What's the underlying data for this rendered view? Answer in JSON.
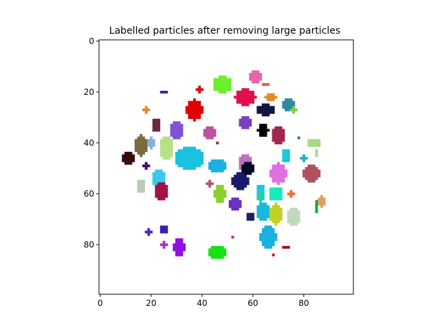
{
  "chart_data": {
    "type": "heatmap",
    "title": "Labelled particles after removing large particles",
    "xlabel": "",
    "ylabel": "",
    "xlim": [
      -0.5,
      99.5
    ],
    "ylim": [
      99.5,
      -0.5
    ],
    "y_inverted": true,
    "grid": false,
    "xticks": [
      0,
      20,
      40,
      60,
      80
    ],
    "yticks": [
      0,
      20,
      40,
      60,
      80
    ],
    "xtick_labels": [
      "0",
      "20",
      "40",
      "60",
      "80"
    ],
    "ytick_labels": [
      "0",
      "20",
      "40",
      "60",
      "80"
    ],
    "background": "#ffffff",
    "particles": [
      {
        "cx": 48,
        "cy": 17,
        "rx": 3.5,
        "ry": 3,
        "color": "#6bef2a"
      },
      {
        "cx": 61,
        "cy": 14,
        "rx": 2.2,
        "ry": 2.5,
        "color": "#e366a8"
      },
      {
        "cx": 65,
        "cy": 17,
        "rx": 1,
        "ry": 0.5,
        "color": "#f25c2b"
      },
      {
        "cx": 57,
        "cy": 22,
        "rx": 3.8,
        "ry": 3,
        "color": "#e0104a"
      },
      {
        "cx": 67,
        "cy": 22,
        "rx": 2,
        "ry": 1.5,
        "color": "#e28a2b"
      },
      {
        "cx": 74,
        "cy": 25,
        "rx": 1.8,
        "ry": 2.5,
        "color": "#2d8a9e"
      },
      {
        "cx": 76,
        "cy": 27,
        "rx": 1,
        "ry": 1,
        "color": "#7bd04a"
      },
      {
        "cx": 65,
        "cy": 27,
        "rx": 3,
        "ry": 2,
        "color": "#121440"
      },
      {
        "cx": 39,
        "cy": 19,
        "rx": 1,
        "ry": 1,
        "color": "#c81414"
      },
      {
        "cx": 25,
        "cy": 20,
        "rx": 1,
        "ry": 0.5,
        "color": "#3a22b0"
      },
      {
        "cx": 18,
        "cy": 27,
        "rx": 0.8,
        "ry": 1.5,
        "color": "#e08a30"
      },
      {
        "cx": 37,
        "cy": 27,
        "rx": 2.8,
        "ry": 3.8,
        "color": "#e00000"
      },
      {
        "cx": 57,
        "cy": 32,
        "rx": 2.2,
        "ry": 2.5,
        "color": "#7a3fc0"
      },
      {
        "cx": 22,
        "cy": 33,
        "rx": 1.4,
        "ry": 2.2,
        "color": "#6a2840"
      },
      {
        "cx": 30,
        "cy": 35,
        "rx": 2.2,
        "ry": 3.5,
        "color": "#8052d8"
      },
      {
        "cx": 43,
        "cy": 36,
        "rx": 2.2,
        "ry": 2.5,
        "color": "#b8549c"
      },
      {
        "cx": 64,
        "cy": 35,
        "rx": 1.8,
        "ry": 2.2,
        "color": "#000000"
      },
      {
        "cx": 70,
        "cy": 37,
        "rx": 2.2,
        "ry": 3.2,
        "color": "#a0284e"
      },
      {
        "cx": 78,
        "cy": 38,
        "rx": 0.5,
        "ry": 0.5,
        "color": "#2a8a2a"
      },
      {
        "cx": 84,
        "cy": 40,
        "rx": 2.2,
        "ry": 1.5,
        "color": "#a8d88a"
      },
      {
        "cx": 16,
        "cy": 41,
        "rx": 2,
        "ry": 4,
        "color": "#7a6a3c"
      },
      {
        "cx": 20,
        "cy": 40,
        "rx": 0.8,
        "ry": 1.8,
        "color": "#8ab0d8"
      },
      {
        "cx": 26,
        "cy": 42,
        "rx": 2.5,
        "ry": 4,
        "color": "#b8e08a"
      },
      {
        "cx": 35,
        "cy": 46,
        "rx": 5.5,
        "ry": 4,
        "color": "#1ac2e0"
      },
      {
        "cx": 46,
        "cy": 49,
        "rx": 3,
        "ry": 2.5,
        "color": "#1ab0e0"
      },
      {
        "cx": 11,
        "cy": 46,
        "rx": 1.8,
        "ry": 2.5,
        "color": "#3a0a0a"
      },
      {
        "cx": 18,
        "cy": 49,
        "rx": 0.8,
        "ry": 1.5,
        "color": "#4a0a6a"
      },
      {
        "cx": 23,
        "cy": 54,
        "rx": 2.2,
        "ry": 3.5,
        "color": "#38c8e8"
      },
      {
        "cx": 16,
        "cy": 57,
        "rx": 1.5,
        "ry": 2.2,
        "color": "#b8ccb8"
      },
      {
        "cx": 24,
        "cy": 59,
        "rx": 2.5,
        "ry": 3,
        "color": "#a01248"
      },
      {
        "cx": 57,
        "cy": 48,
        "rx": 2.2,
        "ry": 3.5,
        "color": "#c070b8"
      },
      {
        "cx": 58,
        "cy": 50,
        "rx": 2.2,
        "ry": 2.2,
        "color": "#000822"
      },
      {
        "cx": 70,
        "cy": 52,
        "rx": 2.8,
        "ry": 3.8,
        "color": "#e070e0"
      },
      {
        "cx": 73,
        "cy": 45,
        "rx": 1.5,
        "ry": 2.2,
        "color": "#1ac8e0"
      },
      {
        "cx": 80,
        "cy": 46,
        "rx": 1,
        "ry": 1,
        "color": "#28b0c0"
      },
      {
        "cx": 83,
        "cy": 52,
        "rx": 3.2,
        "ry": 3.2,
        "color": "#b05060"
      },
      {
        "cx": 55,
        "cy": 55,
        "rx": 2.8,
        "ry": 3.5,
        "color": "#1a1a6a"
      },
      {
        "cx": 43,
        "cy": 56,
        "rx": 0.8,
        "ry": 1,
        "color": "#b05a70"
      },
      {
        "cx": 63,
        "cy": 58,
        "rx": 1.2,
        "ry": 1.2,
        "color": "#1ac8e0"
      },
      {
        "cx": 69,
        "cy": 60,
        "rx": 2.5,
        "ry": 2.5,
        "color": "#18e8c0"
      },
      {
        "cx": 63,
        "cy": 61,
        "rx": 1.2,
        "ry": 2,
        "color": "#20d0b0"
      },
      {
        "cx": 47,
        "cy": 60,
        "rx": 1.8,
        "ry": 3.5,
        "color": "#8ad030"
      },
      {
        "cx": 75,
        "cy": 60,
        "rx": 1,
        "ry": 1,
        "color": "#f07030"
      },
      {
        "cx": 53,
        "cy": 64,
        "rx": 2.2,
        "ry": 2.2,
        "color": "#6a30c0"
      },
      {
        "cx": 87,
        "cy": 63,
        "rx": 1,
        "ry": 2,
        "color": "#e0a060"
      },
      {
        "cx": 85,
        "cy": 65,
        "rx": 0.5,
        "ry": 2,
        "color": "#20a040"
      },
      {
        "cx": 64,
        "cy": 67,
        "rx": 2.2,
        "ry": 3.5,
        "color": "#1ab8e0"
      },
      {
        "cx": 69,
        "cy": 68,
        "rx": 2,
        "ry": 4,
        "color": "#c0d028"
      },
      {
        "cx": 76,
        "cy": 69,
        "rx": 2.5,
        "ry": 3.5,
        "color": "#c0d8c0"
      },
      {
        "cx": 59,
        "cy": 69,
        "rx": 1.5,
        "ry": 1,
        "color": "#202060"
      },
      {
        "cx": 66,
        "cy": 77,
        "rx": 2.8,
        "ry": 4,
        "color": "#1ab0e0"
      },
      {
        "cx": 25,
        "cy": 74,
        "rx": 1.2,
        "ry": 1,
        "color": "#3a20b0"
      },
      {
        "cx": 19,
        "cy": 75,
        "rx": 1,
        "ry": 1,
        "color": "#5028c0"
      },
      {
        "cx": 31,
        "cy": 81,
        "rx": 1.8,
        "ry": 3.2,
        "color": "#9010e0"
      },
      {
        "cx": 25,
        "cy": 80,
        "rx": 0.8,
        "ry": 0.8,
        "color": "#b030d0"
      },
      {
        "cx": 46,
        "cy": 83,
        "rx": 3,
        "ry": 2.5,
        "color": "#18e018"
      },
      {
        "cx": 52,
        "cy": 77,
        "rx": 0.5,
        "ry": 0.5,
        "color": "#d0209c"
      },
      {
        "cx": 73,
        "cy": 81,
        "rx": 1,
        "ry": 0.5,
        "color": "#a01010"
      },
      {
        "cx": 68,
        "cy": 84,
        "rx": 0.5,
        "ry": 0.5,
        "color": "#d01010"
      },
      {
        "cx": 46,
        "cy": 40,
        "rx": 0.5,
        "ry": 0.5,
        "color": "#c02030"
      },
      {
        "cx": 85,
        "cy": 44,
        "rx": 0.5,
        "ry": 1,
        "color": "#b0d0a0"
      }
    ]
  }
}
